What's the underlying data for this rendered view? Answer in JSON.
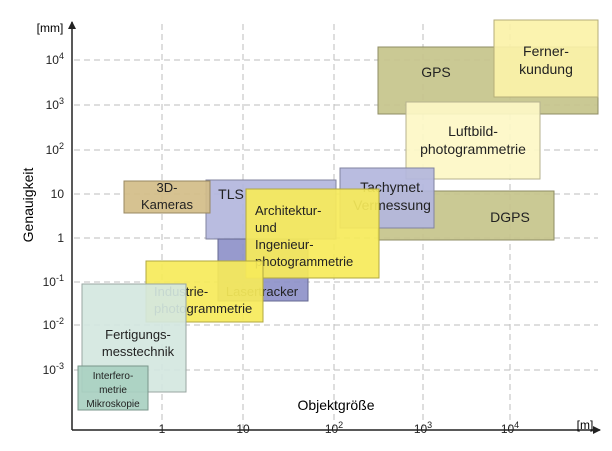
{
  "y_unit": "[mm]",
  "x_unit": "[m]",
  "y_title": "Genauigkeit",
  "x_title": "Objektgröße",
  "y_ticks": [
    {
      "base": "10",
      "exp": "4"
    },
    {
      "base": "10",
      "exp": "3"
    },
    {
      "base": "10",
      "exp": "2"
    },
    {
      "base": "10",
      "exp": ""
    },
    {
      "base": "1",
      "exp": ""
    },
    {
      "base": "10",
      "exp": "-1"
    },
    {
      "base": "10",
      "exp": "-2"
    },
    {
      "base": "10",
      "exp": "-3"
    }
  ],
  "x_ticks": [
    {
      "base": "1",
      "exp": ""
    },
    {
      "base": "10",
      "exp": ""
    },
    {
      "base": "10",
      "exp": "2"
    },
    {
      "base": "10",
      "exp": "3"
    },
    {
      "base": "10",
      "exp": "4"
    }
  ],
  "regions": [
    {
      "id": "gps",
      "lines": [
        "GPS"
      ],
      "color": "#c6c48b"
    },
    {
      "id": "fernerkundung",
      "lines": [
        "Ferner-",
        "kundung"
      ],
      "color": "#fbf2a8"
    },
    {
      "id": "luftbild",
      "lines": [
        "Luftbild-",
        "photogrammetrie"
      ],
      "color": "#fdf7c6"
    },
    {
      "id": "dgps",
      "lines": [
        "DGPS"
      ],
      "color": "#c6c48b"
    },
    {
      "id": "tls",
      "lines": [
        "TLS"
      ],
      "color": "#b3b6dd"
    },
    {
      "id": "laser",
      "lines": [
        "Lasertracker"
      ],
      "color": "#8e91c9"
    },
    {
      "id": "tachy",
      "lines": [
        "Tachymet.",
        "Vermessung"
      ],
      "color": "#b3b6dd"
    },
    {
      "id": "kameras",
      "lines": [
        "3D-",
        "Kameras"
      ],
      "color": "#d3bd88"
    },
    {
      "id": "architektur",
      "lines": [
        "Architektur-",
        "und",
        "Ingenieur-",
        "photogrammetrie"
      ],
      "color": "#f6ea5a"
    },
    {
      "id": "industrie",
      "lines": [
        "Industrie-",
        "photogrammetrie"
      ],
      "color": "#f6ea5a"
    },
    {
      "id": "fertigung",
      "lines": [
        "Fertigungs-",
        "messtechnik"
      ],
      "color": "#d4e7df"
    },
    {
      "id": "interfero",
      "lines": [
        "Interfero-",
        "metrie",
        "Mikroskopie"
      ],
      "color": "#a9d0c1"
    }
  ]
}
